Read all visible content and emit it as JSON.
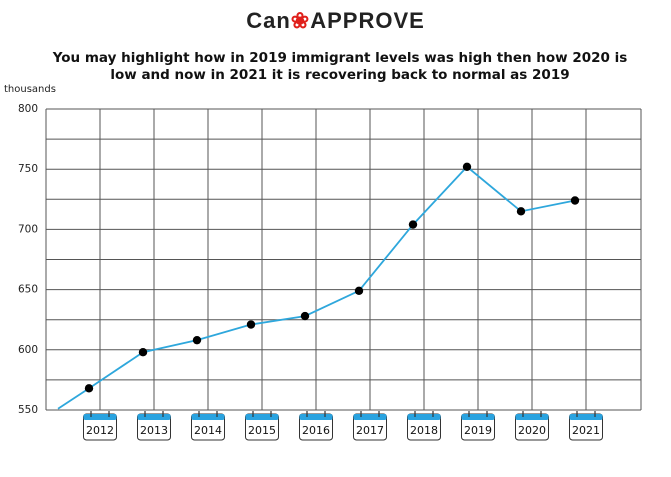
{
  "logo": {
    "part1": "Can",
    "part2": "Approve"
  },
  "colors": {
    "line": "#2ea7dc",
    "marker": "#000000",
    "grid": "#555555",
    "calendar_top": "#29a3e0",
    "logo_accent": "#e0201b"
  },
  "chart_data": {
    "type": "line",
    "title": "You may highlight how in 2019 immigrant levels was high then how 2020 is low and now in 2021 it is recovering back to normal as 2019",
    "ylabel": "thousands",
    "xlabel": "",
    "ylim": [
      550,
      800
    ],
    "yticks": [
      550,
      600,
      650,
      700,
      750,
      800
    ],
    "grid": true,
    "categories": [
      "2012",
      "2013",
      "2014",
      "2015",
      "2016",
      "2017",
      "2018",
      "2019",
      "2020",
      "2021"
    ],
    "series": [
      {
        "values": [
          568,
          598,
          608,
          621,
          628,
          649,
          704,
          752,
          715,
          724
        ],
        "start_value": 551
      }
    ]
  }
}
